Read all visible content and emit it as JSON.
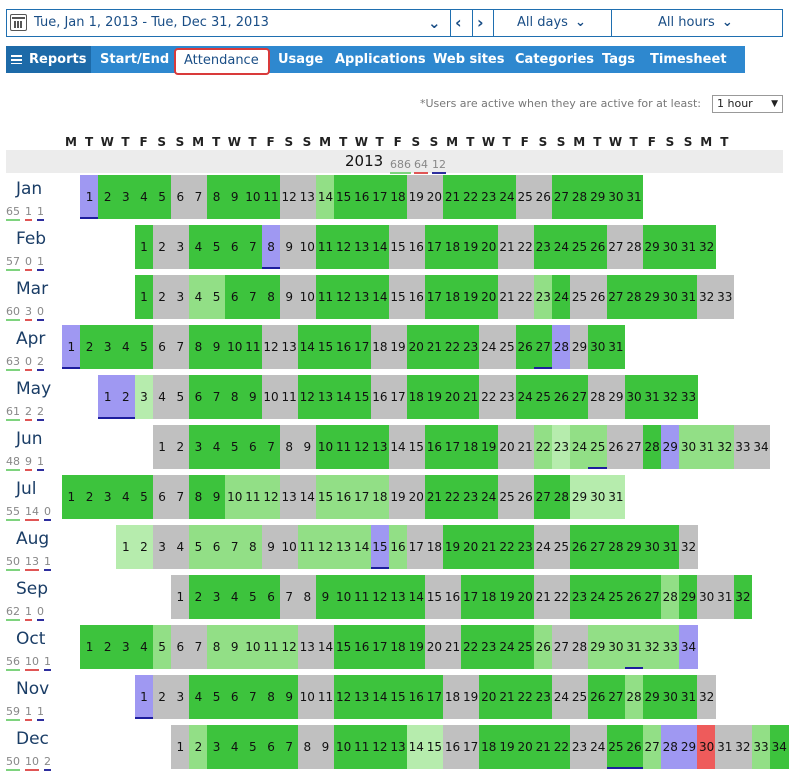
{
  "daterange": {
    "label": "Tue, Jan 1, 2013 - Tue, Dec 31, 2013",
    "days_label": "All days",
    "hours_label": "All hours"
  },
  "tabs": [
    {
      "label": "Reports"
    },
    {
      "label": "Start/End"
    },
    {
      "label": "Attendance"
    },
    {
      "label": "Usage"
    },
    {
      "label": "Applications"
    },
    {
      "label": "Web sites"
    },
    {
      "label": "Categories"
    },
    {
      "label": "Tags"
    },
    {
      "label": "Timesheet"
    }
  ],
  "note": "*Users are active when they are active for at least:",
  "active_threshold": "1 hour",
  "weekdays": [
    "M",
    "T",
    "W",
    "T",
    "F",
    "S",
    "S",
    "M",
    "T",
    "W",
    "T",
    "F",
    "S",
    "S",
    "M",
    "T",
    "W",
    "T",
    "F",
    "S",
    "S",
    "M",
    "T",
    "W",
    "T",
    "F",
    "S",
    "S",
    "M",
    "T",
    "W",
    "T",
    "F",
    "S",
    "S",
    "M",
    "T"
  ],
  "year": {
    "label": "2013",
    "stats": [
      "686",
      "64",
      "12"
    ]
  },
  "colors": {
    "active": "#3dc33d",
    "partial": "#92df86",
    "light": "#b6ecad",
    "weekend": "#c0c0c0",
    "vacation": "#9f98f2",
    "absent": "#ee5b5b"
  },
  "months": [
    {
      "name": "Jan",
      "stats": [
        "65",
        "1",
        "1"
      ],
      "offset": 1,
      "codes": "vggggwwggggwwlggggwwggggwwggggg",
      "underline": [
        1
      ]
    },
    {
      "name": "Feb",
      "stats": [
        "57",
        "0",
        "1"
      ],
      "offset": 4,
      "codes": "gwwggggvwwggggwwggggwwggggwwgggg",
      "underline": [
        8
      ]
    },
    {
      "name": "Mar",
      "stats": [
        "60",
        "3",
        "0"
      ],
      "offset": 4,
      "codes": "gwwllgggwwggggwwggggwwlgwwgggggww",
      "underline": []
    },
    {
      "name": "Apr",
      "stats": [
        "63",
        "0",
        "2"
      ],
      "offset": 0,
      "codes": "vggggwwggggwwggggwwggggwwggvwgg",
      "underline": [
        1,
        27
      ]
    },
    {
      "name": "May",
      "stats": [
        "61",
        "2",
        "2"
      ],
      "offset": 2,
      "codes": "vvpwwggggwwggggwwggggwwggggwwgggg",
      "underline": [
        1,
        2
      ]
    },
    {
      "name": "Jun",
      "stats": [
        "48",
        "9",
        "1"
      ],
      "offset": 5,
      "codes": "wwgggggwwggggwwggggwwlpllwwgvlllww",
      "underline": [
        25
      ]
    },
    {
      "name": "Jul",
      "stats": [
        "55",
        "14",
        "0"
      ],
      "offset": 0,
      "codes": "gggggwwgglllwwllllwwggggwwggppp",
      "underline": []
    },
    {
      "name": "Aug",
      "stats": [
        "50",
        "13",
        "1"
      ],
      "offset": 3,
      "codes": "ppwwllllwwllllvlwwgggggwwggggggw",
      "underline": [
        15
      ]
    },
    {
      "name": "Sep",
      "stats": [
        "62",
        "1",
        "0"
      ],
      "offset": 6,
      "codes": "wgggggwwggggggwwggggwwggggglgwwg",
      "underline": []
    },
    {
      "name": "Oct",
      "stats": [
        "56",
        "10",
        "1"
      ],
      "offset": 1,
      "codes": "gggglwwlllllwwgggggwwgggglwwlllllv",
      "underline": [
        31
      ]
    },
    {
      "name": "Nov",
      "stats": [
        "59",
        "1",
        "1"
      ],
      "offset": 4,
      "codes": "vwwggggggwwggggggwwggggwwgglgggw",
      "underline": [
        1
      ]
    },
    {
      "name": "Dec",
      "stats": [
        "50",
        "10",
        "2"
      ],
      "offset": 6,
      "codes": "wlgggggwwggggppwwgggggwwgglvvrwwlgg",
      "underline": [
        25,
        26
      ]
    }
  ]
}
